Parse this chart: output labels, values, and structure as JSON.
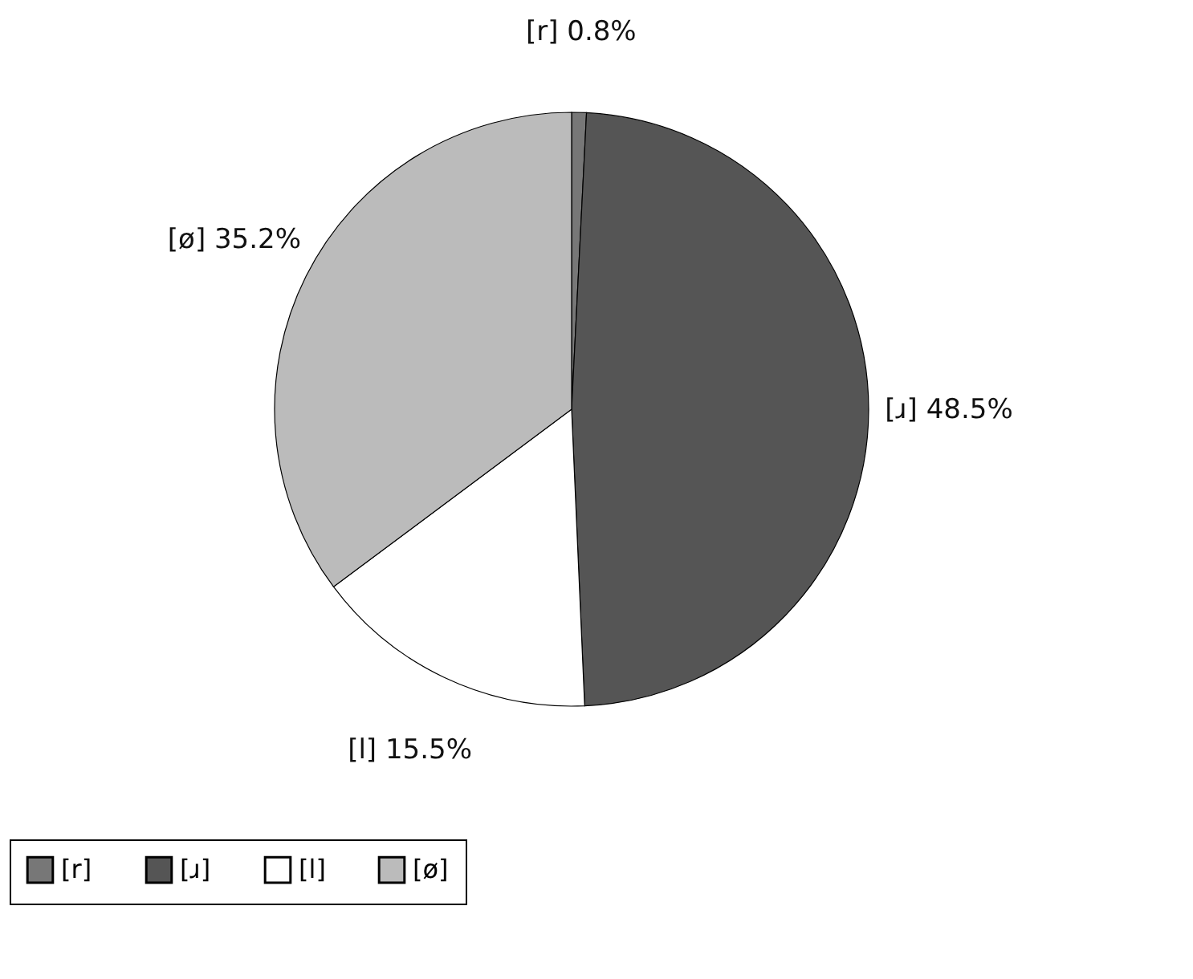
{
  "chart_data": {
    "type": "pie",
    "categories": [
      "[r]",
      "[ɹ]",
      "[l]",
      "[ø]"
    ],
    "values": [
      0.8,
      48.5,
      15.5,
      35.2
    ],
    "colors": [
      "#777777",
      "#555555",
      "#ffffff",
      "#bbbbbb"
    ],
    "value_labels": [
      "0.8%",
      "48.5%",
      "15.5%",
      "35.2%"
    ],
    "legend": "bottom"
  }
}
